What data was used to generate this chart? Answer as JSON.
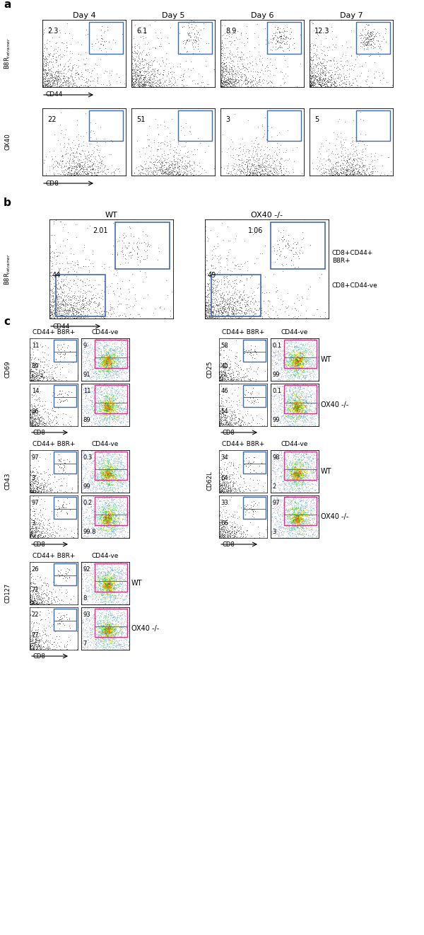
{
  "panel_a": {
    "days": [
      "Day 4",
      "Day 5",
      "Day 6",
      "Day 7"
    ],
    "row1_values": [
      "2.3",
      "6.1",
      "8.9",
      "12.3"
    ],
    "row2_values": [
      "22",
      "51",
      "3",
      "5"
    ]
  },
  "panel_b": {
    "conditions": [
      "WT",
      "OX40 -/-"
    ],
    "values_top": [
      "2.01",
      "1.06"
    ],
    "values_bottom": [
      "44",
      "49"
    ]
  },
  "panel_c": {
    "CD69_WT": {
      "b8r": [
        "11",
        "89"
      ],
      "cd44": [
        "9",
        "91"
      ]
    },
    "CD69_OX40": {
      "b8r": [
        "14",
        "86"
      ],
      "cd44": [
        "11",
        "89"
      ]
    },
    "CD25_WT": {
      "b8r": [
        "58",
        "40"
      ],
      "cd44": [
        "0.1",
        "99"
      ]
    },
    "CD25_OX40": {
      "b8r": [
        "46",
        "54"
      ],
      "cd44": [
        "0.1",
        "99"
      ]
    },
    "CD43_WT": {
      "b8r": [
        "97",
        "3"
      ],
      "cd44": [
        "0.3",
        "99"
      ]
    },
    "CD43_OX40": {
      "b8r": [
        "97",
        "3"
      ],
      "cd44": [
        "0.2",
        "99.8"
      ]
    },
    "CD62L_WT": {
      "b8r": [
        "34",
        "64"
      ],
      "cd44": [
        "98",
        "2"
      ]
    },
    "CD62L_OX40": {
      "b8r": [
        "33",
        "66"
      ],
      "cd44": [
        "97",
        "3"
      ]
    },
    "CD127_WT": {
      "b8r": [
        "26",
        "72"
      ],
      "cd44": [
        "92",
        "8"
      ]
    },
    "CD127_OX40": {
      "b8r": [
        "22",
        "77"
      ],
      "cd44": [
        "93",
        "7"
      ]
    }
  },
  "blue": "#4169b0",
  "pink": "#d63384",
  "black": "#000000",
  "white": "#ffffff"
}
